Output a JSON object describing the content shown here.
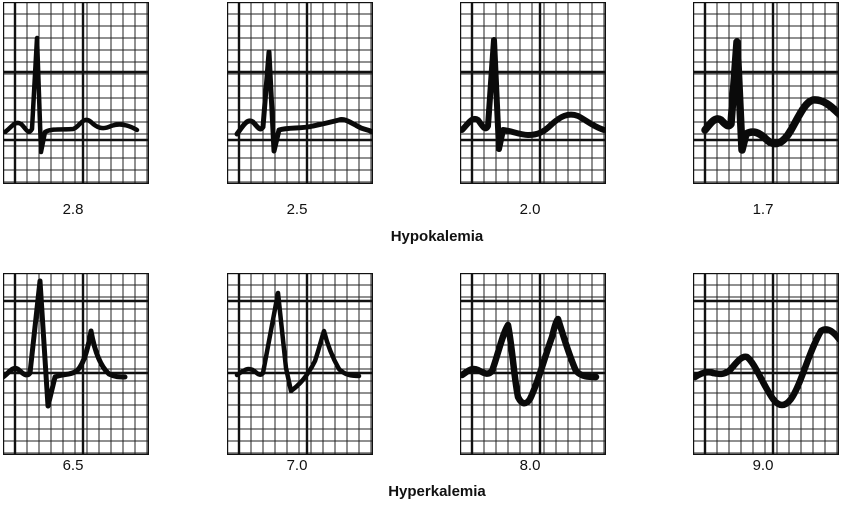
{
  "rows": [
    {
      "title": "Hypokalemia",
      "panels": [
        {
          "value": "2.8",
          "shape": "hypo1"
        },
        {
          "value": "2.5",
          "shape": "hypo2"
        },
        {
          "value": "2.0",
          "shape": "hypo3"
        },
        {
          "value": "1.7",
          "shape": "hypo4"
        }
      ]
    },
    {
      "title": "Hyperkalemia",
      "panels": [
        {
          "value": "6.5",
          "shape": "hyper1"
        },
        {
          "value": "7.0",
          "shape": "hyper2"
        },
        {
          "value": "8.0",
          "shape": "hyper3"
        },
        {
          "value": "9.0",
          "shape": "hyper4"
        }
      ]
    }
  ]
}
